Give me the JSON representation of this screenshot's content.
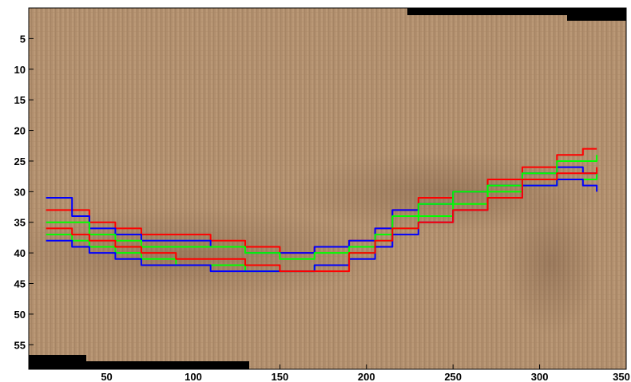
{
  "chart_data": {
    "type": "line",
    "title": "",
    "xlabel": "",
    "ylabel": "",
    "xlim": [
      5,
      350
    ],
    "ylim": [
      0,
      59
    ],
    "y_reversed": true,
    "grid": false,
    "legend": "none",
    "background": "textured brown image (stripe pattern) with a darker curved band",
    "x_ticks": [
      "50",
      "100",
      "150",
      "200",
      "250",
      "300",
      "350"
    ],
    "y_ticks": [
      "5",
      "10",
      "15",
      "20",
      "25",
      "30",
      "35",
      "40",
      "45",
      "50",
      "55"
    ],
    "series": [
      {
        "color": "#ff0000",
        "x": [
          15,
          30,
          40,
          55,
          70,
          90,
          110,
          130,
          150,
          170,
          190,
          205,
          215,
          230,
          250,
          270,
          290,
          310,
          325,
          333
        ],
        "y": [
          33,
          33,
          35,
          36,
          37,
          37,
          38,
          39,
          40,
          39,
          38,
          36,
          33,
          31,
          30,
          28,
          26,
          24,
          23,
          23
        ]
      },
      {
        "color": "#0000ff",
        "x": [
          15,
          30,
          40,
          55,
          70,
          90,
          110,
          130,
          150,
          170,
          190,
          205,
          215,
          230,
          250,
          270,
          290,
          310,
          325,
          333
        ],
        "y": [
          31,
          34,
          36,
          37,
          38,
          38,
          39,
          40,
          40,
          39,
          38,
          36,
          33,
          32,
          30,
          29,
          27,
          26,
          27,
          28
        ]
      },
      {
        "color": "#00ff00",
        "x": [
          15,
          30,
          40,
          55,
          70,
          90,
          110,
          130,
          150,
          170,
          190,
          205,
          215,
          230,
          250,
          270,
          290,
          310,
          325,
          333
        ],
        "y": [
          35,
          35,
          37,
          38,
          39,
          39,
          39,
          40,
          41,
          40,
          39,
          37,
          34,
          32,
          30,
          29,
          27,
          25,
          25,
          24
        ]
      },
      {
        "color": "#00ff00",
        "x": [
          15,
          30,
          40,
          55,
          70,
          90,
          110,
          130,
          150,
          170,
          190,
          205,
          215,
          230,
          250,
          270,
          290,
          310,
          325,
          333
        ],
        "y": [
          37,
          38,
          39,
          40,
          41,
          42,
          42,
          43,
          43,
          42,
          40,
          38,
          36,
          34,
          32,
          30,
          29,
          28,
          28,
          27
        ]
      },
      {
        "color": "#0000ff",
        "x": [
          15,
          30,
          40,
          55,
          70,
          90,
          110,
          130,
          150,
          170,
          190,
          205,
          215,
          230,
          250,
          270,
          290,
          310,
          325,
          333
        ],
        "y": [
          38,
          39,
          40,
          41,
          42,
          42,
          43,
          43,
          43,
          42,
          41,
          39,
          37,
          35,
          33,
          31,
          29,
          28,
          29,
          30
        ]
      },
      {
        "color": "#ff0000",
        "x": [
          15,
          30,
          40,
          55,
          70,
          90,
          110,
          130,
          150,
          170,
          190,
          205,
          215,
          230,
          250,
          270,
          290,
          310,
          325,
          333
        ],
        "y": [
          36,
          37,
          38,
          39,
          40,
          41,
          41,
          42,
          43,
          43,
          40,
          38,
          36,
          35,
          33,
          31,
          28,
          27,
          27,
          26
        ]
      }
    ]
  }
}
